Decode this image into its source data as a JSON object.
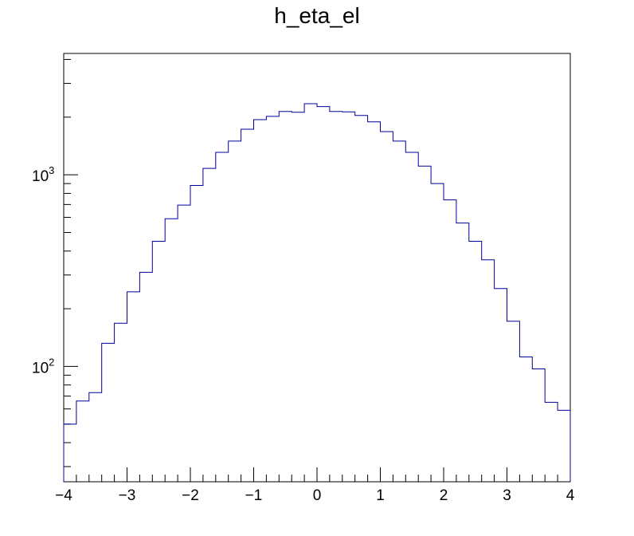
{
  "chart_data": {
    "type": "histogram",
    "title": "h_eta_el",
    "xlabel": "",
    "ylabel": "",
    "xlim": [
      -4,
      4
    ],
    "ylim": [
      25,
      4300
    ],
    "y_scale": "log",
    "grid": false,
    "legend": "none",
    "line_color": "#000099",
    "x_tick_labels": [
      "−4",
      "−3",
      "−2",
      "−1",
      "0",
      "1",
      "2",
      "3",
      "4"
    ],
    "x_tick_values": [
      -4,
      -3,
      -2,
      -1,
      0,
      1,
      2,
      3,
      4
    ],
    "y_tick_labels": [
      {
        "base": "10",
        "exp": "2",
        "value": 100
      },
      {
        "base": "10",
        "exp": "3",
        "value": 1000
      }
    ],
    "bin_edges": [
      -4.0,
      -3.8,
      -3.6,
      -3.4,
      -3.2,
      -3.0,
      -2.8,
      -2.6,
      -2.4,
      -2.2,
      -2.0,
      -1.8,
      -1.6,
      -1.4,
      -1.2,
      -1.0,
      -0.8,
      -0.6,
      -0.4,
      -0.2,
      0.0,
      0.2,
      0.4,
      0.6,
      0.8,
      1.0,
      1.2,
      1.4,
      1.6,
      1.8,
      2.0,
      2.2,
      2.4,
      2.6,
      2.8,
      3.0,
      3.2,
      3.4,
      3.6,
      3.8,
      4.0
    ],
    "values": [
      50,
      66,
      73,
      132,
      168,
      245,
      310,
      450,
      590,
      695,
      880,
      1080,
      1310,
      1500,
      1730,
      1940,
      2020,
      2140,
      2120,
      2350,
      2270,
      2140,
      2130,
      2040,
      1890,
      1680,
      1500,
      1310,
      1110,
      900,
      740,
      560,
      450,
      360,
      255,
      172,
      112,
      97,
      65,
      59
    ]
  }
}
